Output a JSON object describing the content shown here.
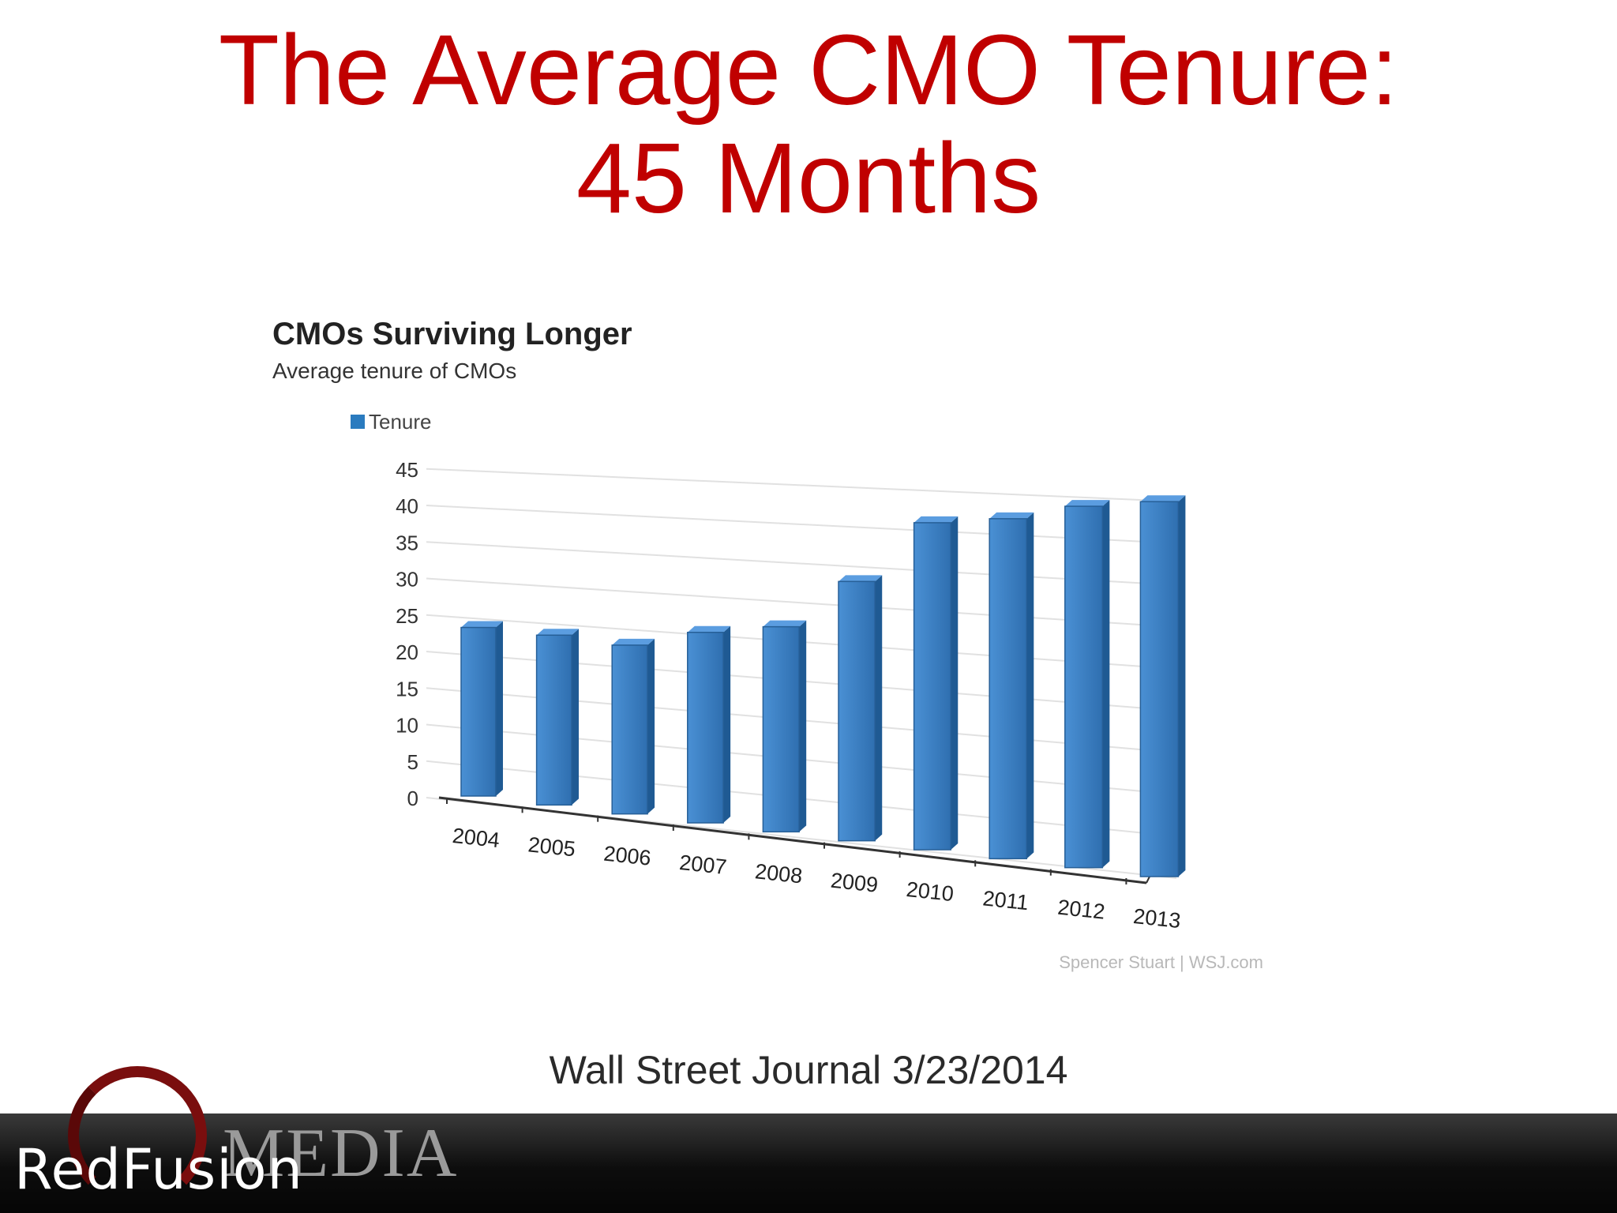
{
  "slide": {
    "title_line1": "The Average CMO Tenure:",
    "title_line2": "45 Months",
    "caption": "Wall Street Journal 3/23/2014"
  },
  "chart_data": {
    "type": "bar",
    "title": "CMOs Surviving Longer",
    "subtitle": "Average tenure of CMOs",
    "legend": [
      "Tenure"
    ],
    "legend_position": "top-left",
    "categories": [
      "2004",
      "2005",
      "2006",
      "2007",
      "2008",
      "2009",
      "2010",
      "2011",
      "2012",
      "2013"
    ],
    "series": [
      {
        "name": "Tenure",
        "values": [
          23.2,
          23.0,
          22.5,
          25.0,
          26.5,
          33.0,
          41.0,
          42.0,
          44.0,
          45.0
        ]
      }
    ],
    "y_ticks": [
      "0",
      "5",
      "10",
      "15",
      "20",
      "25",
      "30",
      "35",
      "40",
      "45"
    ],
    "ylim": [
      0,
      45
    ],
    "grid": true,
    "source": "Spencer Stuart | WSJ.com",
    "color": "#3a7fc2"
  },
  "logo": {
    "main": "RedFusion",
    "sub": "MEDIA"
  }
}
